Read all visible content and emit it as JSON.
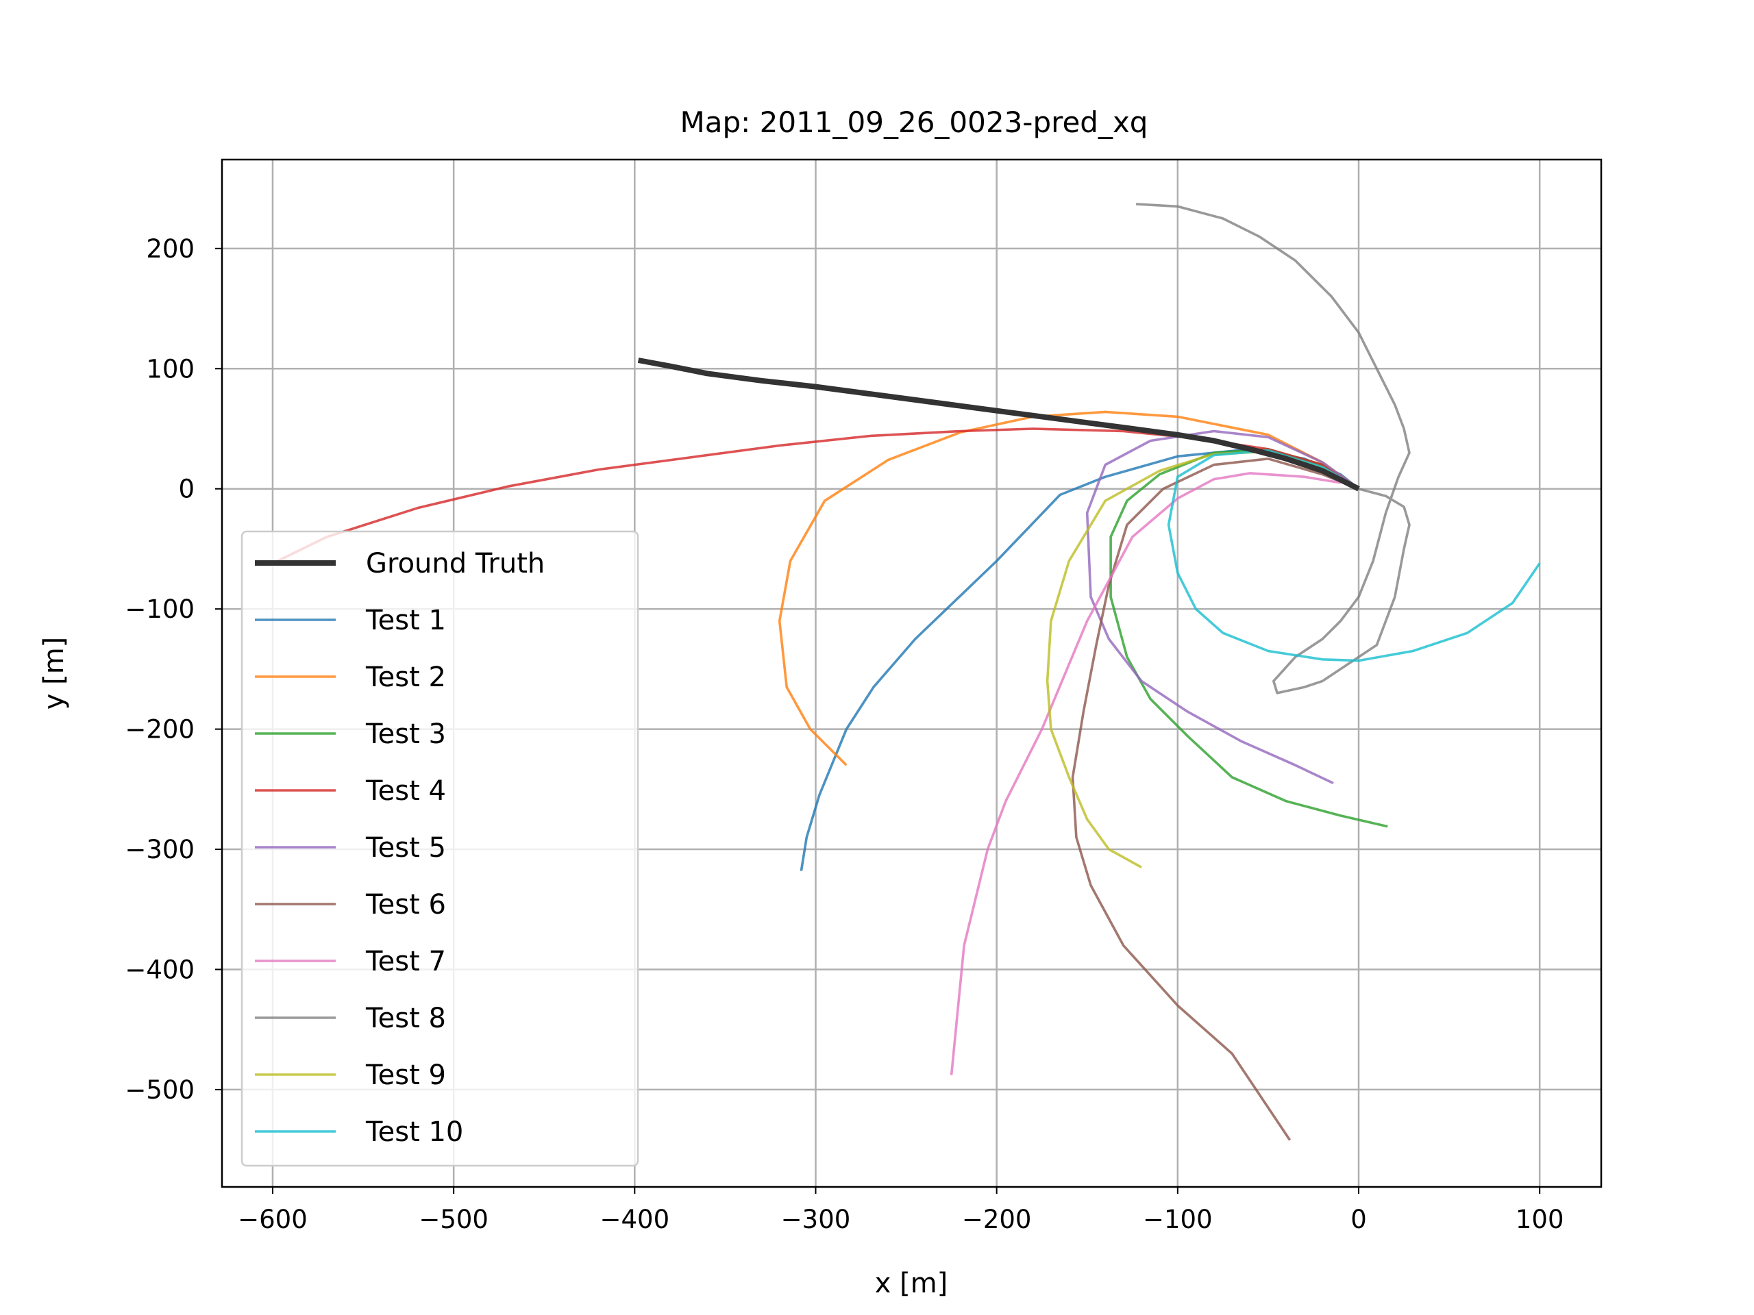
{
  "chart_data": {
    "type": "line",
    "title": "Map: 2011_09_26_0023-pred_xq",
    "xlabel": "x [m]",
    "ylabel": "y [m]",
    "xlim": [
      -628,
      134
    ],
    "ylim": [
      -581,
      274
    ],
    "xticks": [
      -600,
      -500,
      -400,
      -300,
      -200,
      -100,
      0,
      100
    ],
    "xtick_labels": [
      "−600",
      "−500",
      "−400",
      "−300",
      "−200",
      "−100",
      "0",
      "100"
    ],
    "yticks": [
      200,
      100,
      0,
      -100,
      -200,
      -300,
      -400,
      -500
    ],
    "ytick_labels": [
      "200",
      "100",
      "0",
      "−100",
      "−200",
      "−300",
      "−400",
      "−500"
    ],
    "grid": true,
    "legend_position": "lower-left",
    "series": [
      {
        "name": "Ground Truth",
        "color": "#333333",
        "x": [
          0,
          -20,
          -40,
          -60,
          -80,
          -100,
          -120,
          -150,
          -180,
          -210,
          -240,
          -270,
          -300,
          -330,
          -360,
          -380,
          -398
        ],
        "y": [
          0,
          15,
          25,
          33,
          40,
          45,
          49,
          55,
          61,
          67,
          73,
          79,
          85,
          90,
          96,
          102,
          107
        ]
      },
      {
        "name": "Test 1",
        "color": "#1f77b4",
        "x": [
          0,
          -10,
          -30,
          -60,
          -100,
          -140,
          -165,
          -200,
          -245,
          -268,
          -283,
          -298,
          -305,
          -308
        ],
        "y": [
          0,
          12,
          25,
          33,
          27,
          10,
          -5,
          -60,
          -125,
          -165,
          -200,
          -255,
          -290,
          -318
        ]
      },
      {
        "name": "Test 2",
        "color": "#ff7f0e",
        "x": [
          0,
          -20,
          -50,
          -100,
          -140,
          -180,
          -220,
          -260,
          -295,
          -314,
          -320,
          -316,
          -303,
          -283
        ],
        "y": [
          0,
          22,
          45,
          60,
          64,
          60,
          47,
          24,
          -10,
          -60,
          -110,
          -165,
          -200,
          -230
        ]
      },
      {
        "name": "Test 3",
        "color": "#2ca02c",
        "x": [
          0,
          -20,
          -50,
          -80,
          -110,
          -128,
          -137,
          -137,
          -128,
          -115,
          -95,
          -70,
          -40,
          -10,
          16
        ],
        "y": [
          0,
          20,
          33,
          30,
          12,
          -10,
          -40,
          -90,
          -140,
          -175,
          -205,
          -240,
          -260,
          -272,
          -281
        ]
      },
      {
        "name": "Test 4",
        "color": "#d62728",
        "x": [
          0,
          -20,
          -50,
          -90,
          -130,
          -180,
          -220,
          -270,
          -320,
          -370,
          -420,
          -470,
          -520,
          -570,
          -600
        ],
        "y": [
          0,
          20,
          33,
          42,
          48,
          50,
          48,
          44,
          36,
          26,
          16,
          2,
          -16,
          -40,
          -62
        ]
      },
      {
        "name": "Test 5",
        "color": "#9467bd",
        "x": [
          0,
          -20,
          -50,
          -80,
          -115,
          -140,
          -150,
          -148,
          -138,
          -120,
          -95,
          -65,
          -35,
          -14
        ],
        "y": [
          0,
          22,
          43,
          48,
          40,
          20,
          -20,
          -90,
          -125,
          -160,
          -185,
          -210,
          -230,
          -245
        ]
      },
      {
        "name": "Test 6",
        "color": "#8c564b",
        "x": [
          0,
          -20,
          -50,
          -80,
          -108,
          -128,
          -138,
          -145,
          -152,
          -158,
          -156,
          -148,
          -130,
          -100,
          -70,
          -38
        ],
        "y": [
          0,
          12,
          25,
          20,
          0,
          -30,
          -80,
          -130,
          -185,
          -240,
          -290,
          -330,
          -380,
          -430,
          -470,
          -542
        ]
      },
      {
        "name": "Test 7",
        "color": "#e377c2",
        "x": [
          -10,
          -30,
          -60,
          -80,
          -100,
          -125,
          -150,
          -175,
          -195,
          -205,
          -218,
          -225
        ],
        "y": [
          5,
          10,
          13,
          8,
          -8,
          -40,
          -110,
          -200,
          -260,
          -300,
          -380,
          -488
        ]
      },
      {
        "name": "Test 8",
        "color": "#7f7f7f",
        "x": [
          0,
          15,
          25,
          28,
          25,
          20,
          10,
          -20,
          -30,
          -45,
          -47,
          -35,
          -20,
          -10,
          0,
          8,
          15,
          22,
          28,
          25,
          20,
          10,
          0,
          -15,
          -35,
          -55,
          -75,
          -100,
          -123
        ],
        "y": [
          0,
          -6,
          -15,
          -30,
          -50,
          -90,
          -130,
          -160,
          -165,
          -170,
          -160,
          -140,
          -125,
          -110,
          -90,
          -60,
          -20,
          10,
          30,
          50,
          70,
          100,
          130,
          160,
          190,
          210,
          225,
          235,
          237
        ]
      },
      {
        "name": "Test 9",
        "color": "#bcbd22",
        "x": [
          0,
          -20,
          -50,
          -80,
          -110,
          -140,
          -160,
          -170,
          -172,
          -170,
          -160,
          -150,
          -138,
          -120
        ],
        "y": [
          0,
          18,
          31,
          29,
          15,
          -10,
          -60,
          -110,
          -160,
          -200,
          -240,
          -275,
          -300,
          -315
        ]
      },
      {
        "name": "Test 10",
        "color": "#17becf",
        "x": [
          0,
          -20,
          -50,
          -80,
          -100,
          -105,
          -100,
          -90,
          -75,
          -50,
          -20,
          0,
          30,
          60,
          85,
          100
        ],
        "y": [
          0,
          18,
          32,
          28,
          10,
          -30,
          -70,
          -100,
          -120,
          -135,
          -142,
          -143,
          -135,
          -120,
          -95,
          -62
        ]
      }
    ]
  }
}
